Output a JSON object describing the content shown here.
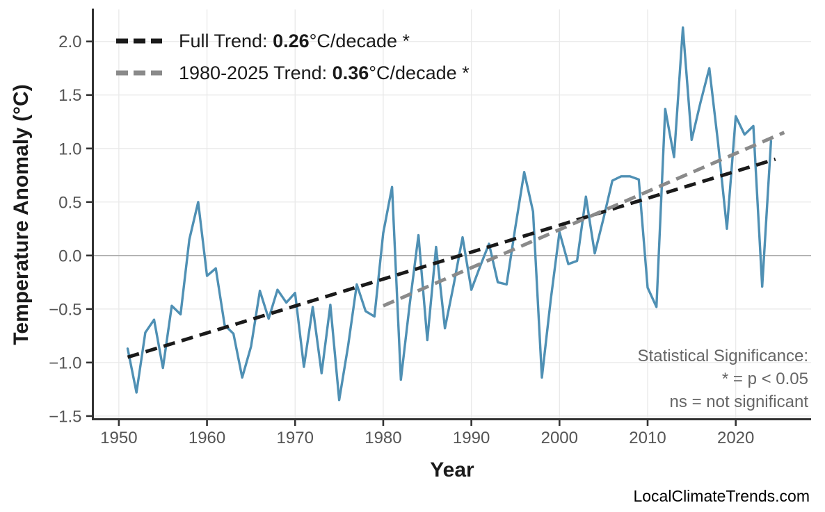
{
  "watermark": "LocalClimateTrends.com",
  "colors": {
    "series": "#4f90b4",
    "full_trend": "#1a1a1a",
    "recent_trend": "#8a8a8a",
    "grid": "#e9e9e9",
    "zero_line": "#ababab",
    "axis": "#333333",
    "tick_label": "#555555",
    "title": "#1a1a1a",
    "annotation": "#666666",
    "watermark": "#000000"
  },
  "legend": {
    "full": {
      "prefix": "Full Trend: ",
      "value": "0.26",
      "suffix": "°C/decade *"
    },
    "recent": {
      "prefix": "1980-2025 Trend: ",
      "value": "0.36",
      "suffix": "°C/decade *"
    }
  },
  "annotation": {
    "line1": "Statistical Significance:",
    "line2": "* = p < 0.05",
    "line3": "ns = not significant"
  },
  "chart_data": {
    "type": "line",
    "title": "",
    "xlabel": "Year",
    "ylabel": "Temperature Anomaly (°C)",
    "xlim": [
      1947.05,
      2028.55
    ],
    "ylim": [
      -1.53,
      2.3
    ],
    "grid": true,
    "zero_line": true,
    "legend_position": "top-left",
    "x_ticks": [
      1950,
      1960,
      1970,
      1980,
      1990,
      2000,
      2010,
      2020
    ],
    "x_tick_labels": [
      "1950",
      "1960",
      "1970",
      "1980",
      "1990",
      "2000",
      "2010",
      "2020"
    ],
    "y_ticks": [
      2.0,
      1.5,
      1.0,
      0.5,
      0.0,
      -0.5,
      -1.0,
      -1.5
    ],
    "y_tick_labels": [
      "2.0",
      "1.5",
      "1.0",
      "0.5",
      "0.0",
      "−0.5",
      "−1.0",
      "−1.5"
    ],
    "series": [
      {
        "name": "annual_temperature_anomaly",
        "color_key": "series",
        "x": [
          1951,
          1952,
          1953,
          1954,
          1955,
          1956,
          1957,
          1958,
          1959,
          1960,
          1961,
          1962,
          1963,
          1964,
          1965,
          1966,
          1967,
          1968,
          1969,
          1970,
          1971,
          1972,
          1973,
          1974,
          1975,
          1976,
          1977,
          1978,
          1979,
          1980,
          1981,
          1982,
          1983,
          1984,
          1985,
          1986,
          1987,
          1988,
          1989,
          1990,
          1991,
          1992,
          1993,
          1994,
          1995,
          1996,
          1997,
          1998,
          1999,
          2000,
          2001,
          2002,
          2003,
          2004,
          2005,
          2006,
          2007,
          2008,
          2009,
          2010,
          2011,
          2012,
          2013,
          2014,
          2015,
          2016,
          2017,
          2018,
          2019,
          2020,
          2021,
          2022,
          2023,
          2024
        ],
        "y": [
          -0.87,
          -1.28,
          -0.72,
          -0.6,
          -1.05,
          -0.47,
          -0.55,
          0.15,
          0.5,
          -0.19,
          -0.12,
          -0.65,
          -0.73,
          -1.14,
          -0.85,
          -0.33,
          -0.59,
          -0.32,
          -0.44,
          -0.35,
          -1.04,
          -0.48,
          -1.1,
          -0.46,
          -1.35,
          -0.85,
          -0.27,
          -0.52,
          -0.57,
          0.21,
          0.64,
          -1.16,
          -0.46,
          0.19,
          -0.79,
          0.08,
          -0.68,
          -0.27,
          0.17,
          -0.32,
          -0.1,
          0.11,
          -0.25,
          -0.27,
          0.27,
          0.78,
          0.41,
          -1.14,
          -0.42,
          0.22,
          -0.08,
          -0.05,
          0.55,
          0.02,
          0.35,
          0.7,
          0.74,
          0.74,
          0.71,
          -0.3,
          -0.48,
          1.37,
          0.92,
          2.13,
          1.08,
          1.43,
          1.75,
          1.05,
          0.25,
          1.3,
          1.13,
          1.21,
          -0.29,
          1.07
        ]
      }
    ],
    "trends": [
      {
        "name": "full-trend",
        "label": "Full Trend",
        "slope_per_decade": 0.26,
        "x": [
          1951,
          2024.5
        ],
        "y": [
          -0.95,
          0.9
        ],
        "color_key": "full_trend"
      },
      {
        "name": "recent-trend",
        "label": "1980-2025 Trend",
        "slope_per_decade": 0.36,
        "x": [
          1980,
          2025.5
        ],
        "y": [
          -0.47,
          1.15
        ],
        "color_key": "recent_trend"
      }
    ]
  }
}
